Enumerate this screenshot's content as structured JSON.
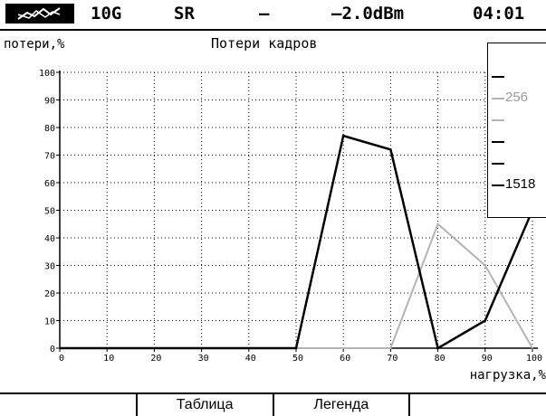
{
  "status_bar": {
    "icon": "signal-graph-icon",
    "rate": "10G",
    "mode": "SR",
    "separator": "–",
    "power": "–2.0dBm",
    "time": "04:01"
  },
  "chart_data": {
    "type": "line",
    "title": "Потери кадров",
    "xlabel": "нагрузка,%",
    "ylabel": "потери,%",
    "x": [
      0,
      10,
      20,
      30,
      40,
      50,
      60,
      70,
      80,
      90,
      100
    ],
    "xlim": [
      0,
      100
    ],
    "ylim": [
      0,
      100
    ],
    "x_ticks": [
      0,
      10,
      20,
      30,
      40,
      50,
      60,
      70,
      80,
      90,
      100
    ],
    "y_ticks": [
      0,
      10,
      20,
      30,
      40,
      50,
      60,
      70,
      80,
      90,
      100
    ],
    "grid": true,
    "legend_position": "right",
    "series": [
      {
        "name": "1518",
        "color": "#000000",
        "values": [
          0,
          0,
          0,
          0,
          0,
          0,
          77,
          72,
          0,
          10,
          50
        ]
      },
      {
        "name": "256",
        "color": "#b4b4b4",
        "values": [
          0,
          0,
          0,
          0,
          0,
          0,
          0,
          0,
          45,
          30,
          0
        ]
      }
    ]
  },
  "legend": {
    "entries": [
      {
        "label": "",
        "color": "#000000"
      },
      {
        "label": "256",
        "color": "#b4b4b4"
      },
      {
        "label": "",
        "color": "#b4b4b4"
      },
      {
        "label": "",
        "color": "#000000"
      },
      {
        "label": "",
        "color": "#000000"
      },
      {
        "label": "1518",
        "color": "#000000"
      }
    ]
  },
  "softkeys": [
    {
      "label": ""
    },
    {
      "label": "Таблица"
    },
    {
      "label": "Легенда"
    },
    {
      "label": ""
    }
  ]
}
